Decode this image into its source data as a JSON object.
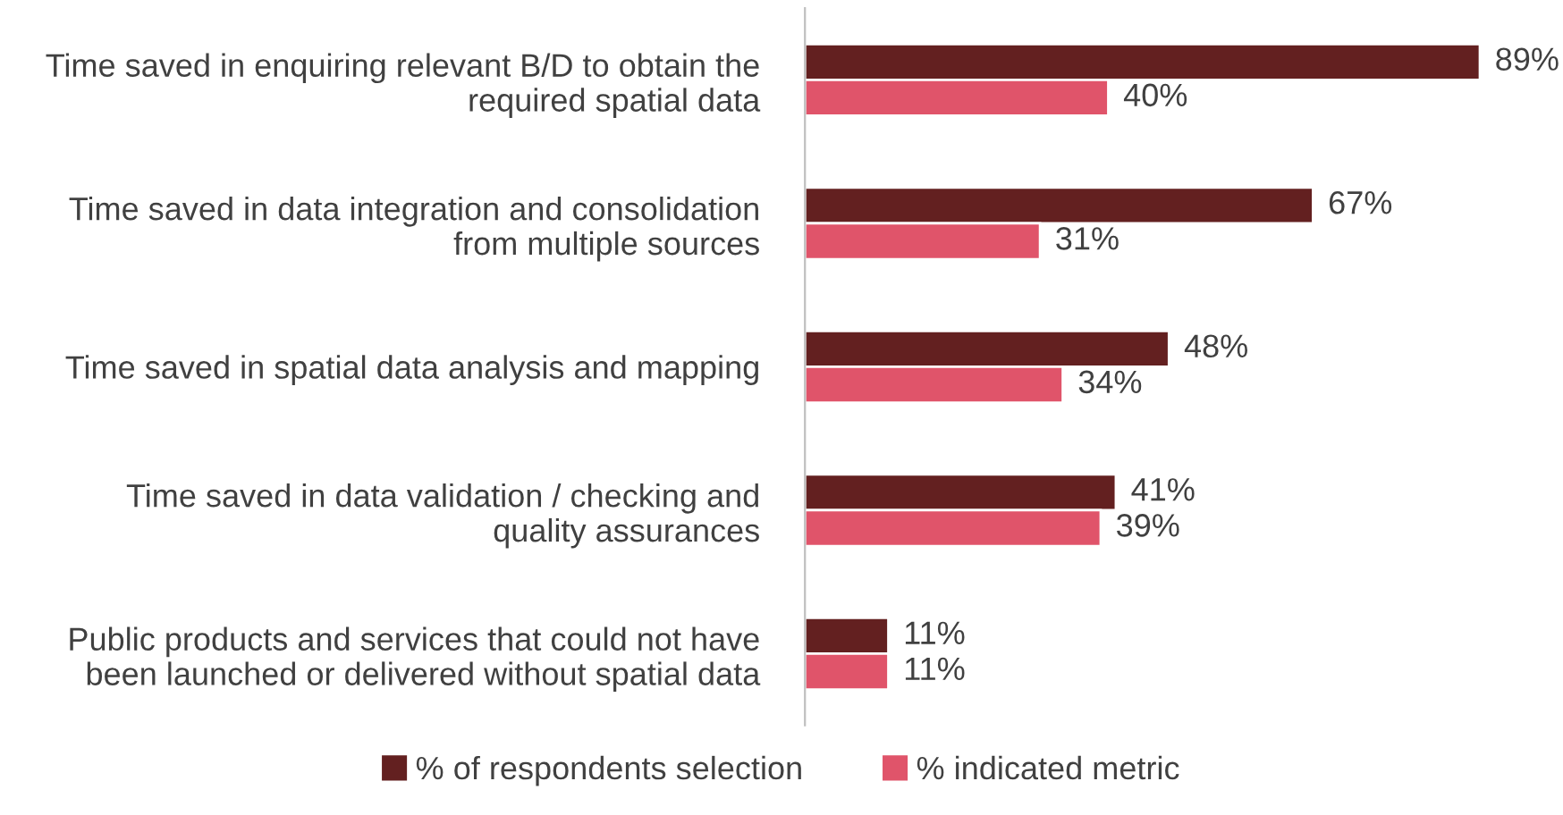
{
  "chart_data": {
    "type": "bar",
    "orientation": "horizontal",
    "categories": [
      "Time saved in enquiring relevant B/D to obtain the\nrequired spatial data",
      "Time saved in data integration and consolidation\nfrom multiple sources",
      "Time saved in spatial data analysis and mapping",
      "Time saved in data validation / checking and\nquality assurances",
      "Public products and services that could not have\nbeen launched or delivered without spatial data"
    ],
    "series": [
      {
        "name": "% of respondents selection",
        "color": "#632020",
        "values": [
          89,
          67,
          48,
          41,
          11
        ],
        "value_labels": [
          "89%",
          "67%",
          "48%",
          "41%",
          "11%"
        ]
      },
      {
        "name": "% indicated metric",
        "color": "#e0546a",
        "values": [
          40,
          31,
          34,
          39,
          11
        ],
        "value_labels": [
          "40%",
          "31%",
          "34%",
          "39%",
          "11%"
        ]
      }
    ],
    "legend": "bottom",
    "grid": false,
    "tick_labels": "y"
  }
}
